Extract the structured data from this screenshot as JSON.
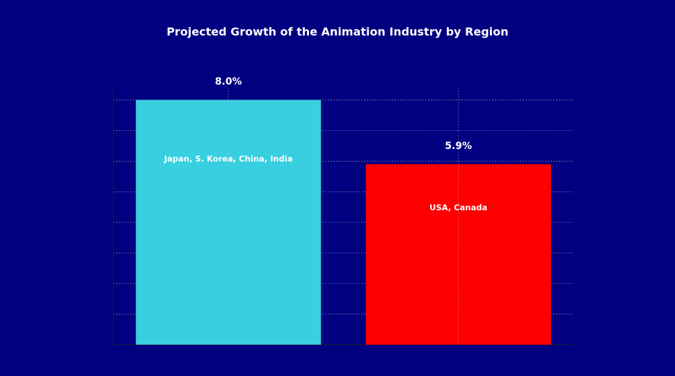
{
  "chart_data": {
    "type": "bar",
    "title": "Projected Growth of the Animation Industry by Region",
    "xlabel": "",
    "ylabel": "",
    "categories": [
      "Japan, S. Korea, China, India",
      "USA, Canada"
    ],
    "values": [
      8.0,
      5.9
    ],
    "value_labels": [
      "8.0%",
      "5.9%"
    ],
    "colors": [
      "#38CFE0",
      "#FF0000"
    ],
    "ylim": [
      0,
      8.4
    ],
    "grid": true,
    "legend": "none",
    "axis_ticks_visible": false
  },
  "colors": {
    "background": "#000080",
    "text": "#ffffff",
    "grid": "#a9a9c8"
  }
}
